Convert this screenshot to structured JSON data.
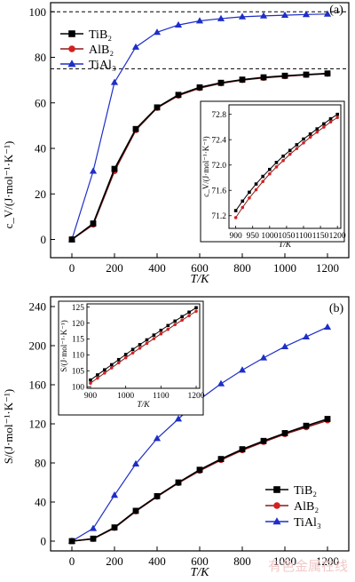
{
  "watermark": "有色金属在线",
  "colors": {
    "tib2": "#000000",
    "alb2": "#d42020",
    "tial3": "#1e2ec8",
    "axis": "#000000",
    "line_tib2": "#000000",
    "line_alb2": "#8b1a1a"
  },
  "chart_data": [
    {
      "type": "line",
      "panel_label": "(a)",
      "xlabel": "T/K",
      "ylabel": "c_V/(J·mol⁻¹·K⁻¹)",
      "xlim": [
        -100,
        1300
      ],
      "ylim": [
        -8,
        104
      ],
      "xticks": [
        0,
        200,
        400,
        600,
        800,
        1000,
        1200
      ],
      "yticks": [
        0,
        20,
        40,
        60,
        80,
        100
      ],
      "reference_lines": [
        100,
        75
      ],
      "legend": "top-left",
      "grid": false,
      "x": [
        0,
        100,
        200,
        300,
        400,
        500,
        600,
        700,
        800,
        900,
        1000,
        1100,
        1200
      ],
      "series": [
        {
          "name": "TiB₂",
          "marker": "square",
          "values": [
            0,
            7,
            31,
            48.5,
            58,
            63.5,
            66.8,
            68.8,
            70.2,
            71.2,
            71.9,
            72.4,
            72.9
          ]
        },
        {
          "name": "AlB₂",
          "marker": "circle",
          "values": [
            0,
            6.5,
            30,
            48,
            57.8,
            63.2,
            66.5,
            68.6,
            70,
            71,
            71.7,
            72.3,
            72.8
          ]
        },
        {
          "name": "TiAl₃",
          "marker": "triangle",
          "values": [
            0,
            30,
            69,
            84.5,
            91,
            94.2,
            96,
            97,
            97.8,
            98.2,
            98.5,
            98.8,
            99
          ]
        }
      ],
      "inset": {
        "xlabel": "T/K",
        "ylabel": "c_V/(J·mol⁻¹·K⁻¹)",
        "xlim": [
          880,
          1210
        ],
        "ylim": [
          71.0,
          72.95
        ],
        "xticks": [
          900,
          950,
          1000,
          1050,
          1100,
          1150,
          1200
        ],
        "yticks": [
          "71.2",
          "71.6",
          "72.0",
          "72.4",
          "72.8"
        ],
        "x": [
          900,
          920,
          940,
          960,
          980,
          1000,
          1020,
          1040,
          1060,
          1080,
          1100,
          1120,
          1140,
          1160,
          1180,
          1200
        ],
        "series": [
          {
            "name": "TiB₂",
            "marker": "square",
            "values": [
              71.28,
              71.43,
              71.57,
              71.7,
              71.82,
              71.93,
              72.04,
              72.14,
              72.23,
              72.32,
              72.41,
              72.49,
              72.57,
              72.65,
              72.73,
              72.8
            ]
          },
          {
            "name": "AlB₂",
            "marker": "circle",
            "values": [
              71.17,
              71.33,
              71.48,
              71.61,
              71.74,
              71.86,
              71.97,
              72.07,
              72.17,
              72.26,
              72.35,
              72.44,
              72.52,
              72.6,
              72.68,
              72.75
            ]
          }
        ]
      }
    },
    {
      "type": "line",
      "panel_label": "(b)",
      "xlabel": "T/K",
      "ylabel": "S/(J·mol⁻¹·K⁻¹)",
      "xlim": [
        -100,
        1300
      ],
      "ylim": [
        -10,
        250
      ],
      "xticks": [
        0,
        200,
        400,
        600,
        800,
        1000,
        1200
      ],
      "yticks": [
        0,
        40,
        80,
        120,
        160,
        200,
        240
      ],
      "legend": "bottom-right",
      "grid": false,
      "x": [
        0,
        100,
        200,
        300,
        400,
        500,
        600,
        700,
        800,
        900,
        1000,
        1100,
        1200
      ],
      "series": [
        {
          "name": "TiB₂",
          "marker": "square",
          "values": [
            0,
            2.5,
            14,
            31,
            46,
            60,
            73,
            84,
            94,
            102.5,
            110.5,
            118,
            125
          ]
        },
        {
          "name": "AlB₂",
          "marker": "circle",
          "values": [
            0,
            2.3,
            13.5,
            30.5,
            45.5,
            59.5,
            72,
            83,
            93,
            101.5,
            109.5,
            116.5,
            123.5
          ]
        },
        {
          "name": "TiAl₃",
          "marker": "triangle",
          "values": [
            0,
            13,
            47,
            79,
            105,
            125,
            145,
            161,
            175,
            187.5,
            199,
            209,
            219
          ]
        }
      ],
      "inset": {
        "xlabel": "T/K",
        "ylabel": "S/(J·mol⁻¹·K⁻¹)",
        "xlim": [
          890,
          1210
        ],
        "ylim": [
          99.5,
          126
        ],
        "xticks": [
          900,
          1000,
          1100,
          1200
        ],
        "yticks": [
          "100",
          "105",
          "110",
          "115",
          "120",
          "125"
        ],
        "x": [
          900,
          920,
          940,
          960,
          980,
          1000,
          1020,
          1040,
          1060,
          1080,
          1100,
          1120,
          1140,
          1160,
          1180,
          1200
        ],
        "series": [
          {
            "name": "TiB₂",
            "marker": "square",
            "values": [
              102.1,
              103.7,
              105.3,
              106.9,
              108.5,
              110.1,
              111.7,
              113.2,
              114.7,
              116.2,
              117.7,
              119.2,
              120.6,
              122.0,
              123.4,
              124.8
            ]
          },
          {
            "name": "AlB₂",
            "marker": "circle",
            "values": [
              101.1,
              102.7,
              104.3,
              105.9,
              107.5,
              109.1,
              110.6,
              112.1,
              113.6,
              115.1,
              116.6,
              118.0,
              119.5,
              120.9,
              122.3,
              123.7
            ]
          }
        ]
      }
    }
  ]
}
